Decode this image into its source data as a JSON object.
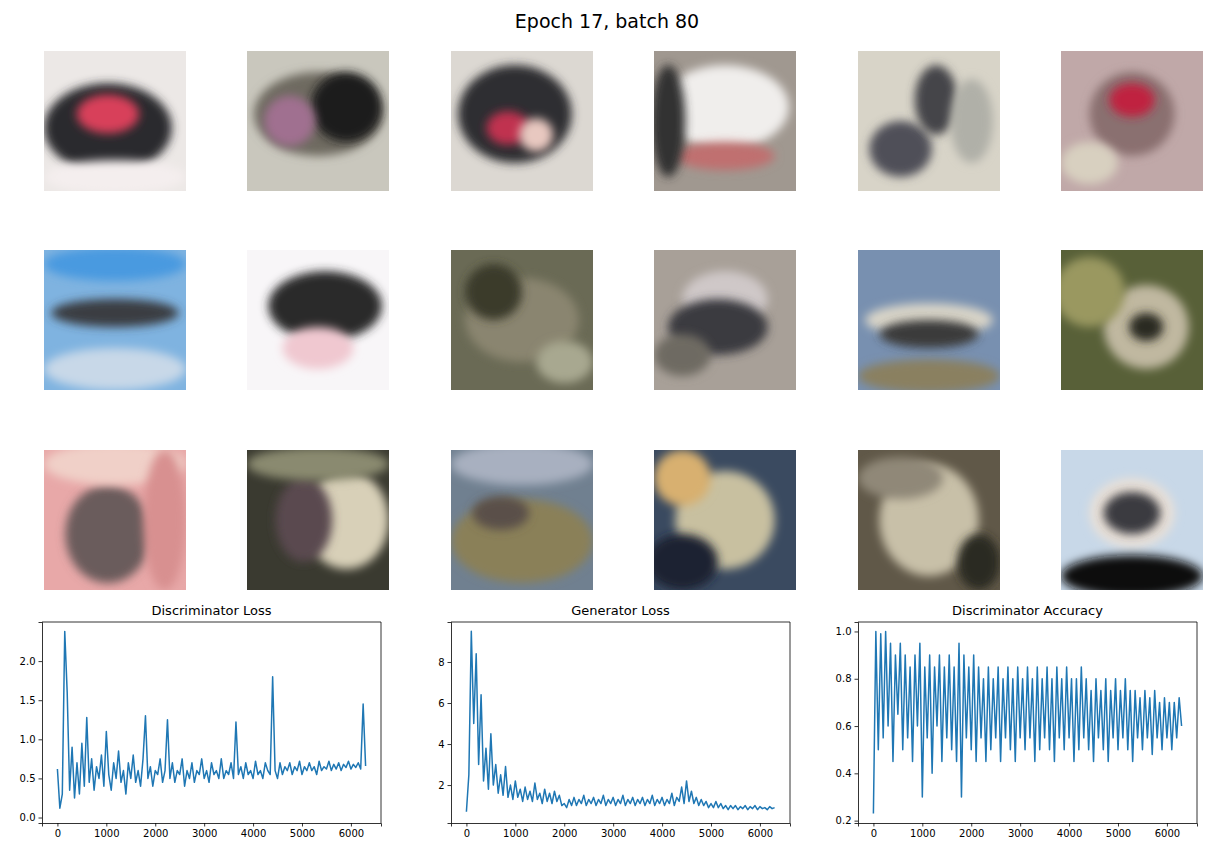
{
  "title": "Epoch 17, batch 80",
  "chart_data": [
    {
      "type": "line",
      "title": "Discriminator Loss",
      "color": "#1f77b4",
      "x": [
        0,
        50,
        100,
        150,
        200,
        250,
        300,
        350,
        400,
        450,
        500,
        550,
        600,
        650,
        700,
        750,
        800,
        850,
        900,
        950,
        1000,
        1050,
        1100,
        1150,
        1200,
        1250,
        1300,
        1350,
        1400,
        1450,
        1500,
        1550,
        1600,
        1650,
        1700,
        1750,
        1800,
        1850,
        1900,
        1950,
        2000,
        2050,
        2100,
        2150,
        2200,
        2250,
        2300,
        2350,
        2400,
        2450,
        2500,
        2550,
        2600,
        2650,
        2700,
        2750,
        2800,
        2850,
        2900,
        2950,
        3000,
        3050,
        3100,
        3150,
        3200,
        3250,
        3300,
        3350,
        3400,
        3450,
        3500,
        3550,
        3600,
        3650,
        3700,
        3750,
        3800,
        3850,
        3900,
        3950,
        4000,
        4050,
        4100,
        4150,
        4200,
        4250,
        4300,
        4350,
        4400,
        4450,
        4500,
        4550,
        4600,
        4650,
        4700,
        4750,
        4800,
        4850,
        4900,
        4950,
        5000,
        5050,
        5100,
        5150,
        5200,
        5250,
        5300,
        5350,
        5400,
        5450,
        5500,
        5550,
        5600,
        5650,
        5700,
        5750,
        5800,
        5850,
        5900,
        5950,
        6000,
        6050,
        6100,
        6150,
        6200,
        6250,
        6300
      ],
      "values": [
        0.62,
        0.12,
        0.3,
        2.38,
        1.6,
        0.35,
        0.9,
        0.25,
        0.7,
        0.3,
        0.95,
        0.4,
        1.28,
        0.45,
        0.75,
        0.35,
        0.65,
        0.5,
        0.8,
        0.4,
        1.1,
        0.55,
        0.35,
        0.7,
        0.5,
        0.85,
        0.45,
        0.6,
        0.3,
        0.7,
        0.5,
        0.8,
        0.45,
        0.6,
        0.4,
        0.75,
        1.3,
        0.5,
        0.65,
        0.4,
        0.6,
        0.55,
        0.75,
        0.45,
        0.6,
        1.25,
        0.5,
        0.7,
        0.45,
        0.6,
        0.55,
        0.75,
        0.4,
        0.6,
        0.5,
        0.7,
        0.45,
        0.6,
        0.55,
        0.75,
        0.5,
        0.6,
        0.45,
        0.7,
        0.55,
        0.6,
        0.5,
        0.75,
        0.5,
        0.6,
        0.55,
        0.7,
        0.5,
        1.22,
        0.55,
        0.65,
        0.5,
        0.7,
        0.55,
        0.6,
        0.5,
        0.72,
        0.55,
        0.6,
        0.5,
        0.7,
        0.6,
        0.55,
        1.8,
        0.6,
        0.5,
        0.7,
        0.55,
        0.65,
        0.6,
        0.7,
        0.55,
        0.65,
        0.6,
        0.72,
        0.55,
        0.65,
        0.6,
        0.7,
        0.6,
        0.65,
        0.55,
        0.72,
        0.6,
        0.65,
        0.62,
        0.72,
        0.6,
        0.68,
        0.62,
        0.7,
        0.6,
        0.68,
        0.64,
        0.72,
        0.62,
        0.68,
        0.64,
        0.7,
        0.62,
        1.45,
        0.66
      ],
      "xlim": [
        -315,
        6615
      ],
      "xticks": [
        0,
        1000,
        2000,
        3000,
        4000,
        5000,
        6000
      ],
      "ylim": [
        -0.07,
        2.5
      ],
      "yticks": [
        {
          "value": 0,
          "label": "0.0"
        },
        0.5,
        {
          "value": 1,
          "label": "1.0"
        },
        1.5,
        {
          "value": 2,
          "label": "2.0"
        }
      ]
    },
    {
      "type": "line",
      "title": "Generator Loss",
      "color": "#1f77b4",
      "x": [
        0,
        50,
        100,
        150,
        200,
        250,
        300,
        350,
        400,
        450,
        500,
        550,
        600,
        650,
        700,
        750,
        800,
        850,
        900,
        950,
        1000,
        1050,
        1100,
        1150,
        1200,
        1250,
        1300,
        1350,
        1400,
        1450,
        1500,
        1550,
        1600,
        1650,
        1700,
        1750,
        1800,
        1850,
        1900,
        1950,
        2000,
        2050,
        2100,
        2150,
        2200,
        2250,
        2300,
        2350,
        2400,
        2450,
        2500,
        2550,
        2600,
        2650,
        2700,
        2750,
        2800,
        2850,
        2900,
        2950,
        3000,
        3050,
        3100,
        3150,
        3200,
        3250,
        3300,
        3350,
        3400,
        3450,
        3500,
        3550,
        3600,
        3650,
        3700,
        3750,
        3800,
        3850,
        3900,
        3950,
        4000,
        4050,
        4100,
        4150,
        4200,
        4250,
        4300,
        4350,
        4400,
        4450,
        4500,
        4550,
        4600,
        4650,
        4700,
        4750,
        4800,
        4850,
        4900,
        4950,
        5000,
        5050,
        5100,
        5150,
        5200,
        5250,
        5300,
        5350,
        5400,
        5450,
        5500,
        5550,
        5600,
        5650,
        5700,
        5750,
        5800,
        5850,
        5900,
        5950,
        6000,
        6050,
        6100,
        6150,
        6200,
        6250,
        6300
      ],
      "values": [
        0.7,
        2.5,
        9.5,
        5.0,
        8.4,
        3.0,
        6.4,
        2.2,
        3.8,
        1.8,
        4.5,
        2.0,
        3.0,
        1.6,
        2.5,
        1.5,
        2.9,
        1.4,
        2.0,
        1.3,
        2.2,
        1.4,
        1.8,
        1.2,
        1.9,
        1.3,
        1.7,
        1.2,
        2.1,
        1.3,
        1.6,
        1.1,
        1.8,
        1.2,
        1.6,
        1.1,
        1.7,
        1.2,
        1.5,
        1.0,
        1.1,
        0.9,
        1.3,
        1.0,
        1.4,
        1.0,
        1.3,
        1.1,
        1.5,
        1.0,
        1.3,
        1.1,
        1.4,
        1.0,
        1.3,
        1.1,
        1.5,
        1.0,
        1.3,
        1.1,
        1.4,
        1.0,
        1.3,
        1.1,
        1.5,
        1.0,
        1.3,
        1.1,
        1.4,
        1.0,
        1.3,
        1.1,
        1.4,
        1.0,
        1.3,
        1.1,
        1.5,
        1.0,
        1.3,
        1.1,
        1.4,
        1.0,
        1.3,
        1.1,
        1.6,
        1.0,
        1.4,
        1.2,
        1.9,
        1.1,
        2.2,
        1.2,
        1.7,
        1.1,
        1.4,
        1.0,
        1.3,
        1.0,
        1.2,
        0.9,
        1.1,
        0.9,
        1.2,
        0.9,
        1.1,
        0.85,
        1.0,
        0.8,
        1.0,
        0.85,
        1.0,
        0.8,
        0.95,
        0.85,
        1.0,
        0.8,
        0.95,
        0.85,
        1.0,
        0.8,
        0.95,
        0.85,
        0.9,
        0.8,
        0.95,
        0.85,
        0.9
      ],
      "xlim": [
        -315,
        6615
      ],
      "xticks": [
        0,
        1000,
        2000,
        3000,
        4000,
        5000,
        6000
      ],
      "ylim": [
        0.15,
        9.95
      ],
      "yticks": [
        2,
        4,
        6,
        8
      ]
    },
    {
      "type": "line",
      "title": "Discriminator Accuracy",
      "color": "#1f77b4",
      "x": [
        0,
        50,
        100,
        150,
        200,
        250,
        300,
        350,
        400,
        450,
        500,
        550,
        600,
        650,
        700,
        750,
        800,
        850,
        900,
        950,
        1000,
        1050,
        1100,
        1150,
        1200,
        1250,
        1300,
        1350,
        1400,
        1450,
        1500,
        1550,
        1600,
        1650,
        1700,
        1750,
        1800,
        1850,
        1900,
        1950,
        2000,
        2050,
        2100,
        2150,
        2200,
        2250,
        2300,
        2350,
        2400,
        2450,
        2500,
        2550,
        2600,
        2650,
        2700,
        2750,
        2800,
        2850,
        2900,
        2950,
        3000,
        3050,
        3100,
        3150,
        3200,
        3250,
        3300,
        3350,
        3400,
        3450,
        3500,
        3550,
        3600,
        3650,
        3700,
        3750,
        3800,
        3850,
        3900,
        3950,
        4000,
        4050,
        4100,
        4150,
        4200,
        4250,
        4300,
        4350,
        4400,
        4450,
        4500,
        4550,
        4600,
        4650,
        4700,
        4750,
        4800,
        4850,
        4900,
        4950,
        5000,
        5050,
        5100,
        5150,
        5200,
        5250,
        5300,
        5350,
        5400,
        5450,
        5500,
        5550,
        5600,
        5650,
        5700,
        5750,
        5800,
        5850,
        5900,
        5950,
        6000,
        6050,
        6100,
        6150,
        6200,
        6250,
        6300
      ],
      "values": [
        0.23,
        1.0,
        0.5,
        0.99,
        0.55,
        1.0,
        0.6,
        0.95,
        0.45,
        0.9,
        0.65,
        0.95,
        0.5,
        0.9,
        0.55,
        0.85,
        0.45,
        0.9,
        0.6,
        0.95,
        0.3,
        0.85,
        0.55,
        0.9,
        0.4,
        0.85,
        0.6,
        0.9,
        0.45,
        0.85,
        0.55,
        0.9,
        0.5,
        0.85,
        0.45,
        0.95,
        0.3,
        0.9,
        0.55,
        0.85,
        0.5,
        0.9,
        0.45,
        0.85,
        0.55,
        0.8,
        0.45,
        0.85,
        0.5,
        0.8,
        0.55,
        0.85,
        0.45,
        0.8,
        0.55,
        0.85,
        0.5,
        0.8,
        0.45,
        0.85,
        0.55,
        0.8,
        0.5,
        0.85,
        0.55,
        0.8,
        0.45,
        0.85,
        0.5,
        0.8,
        0.55,
        0.85,
        0.5,
        0.8,
        0.45,
        0.85,
        0.55,
        0.8,
        0.5,
        0.85,
        0.55,
        0.8,
        0.45,
        0.8,
        0.5,
        0.85,
        0.55,
        0.8,
        0.5,
        0.75,
        0.45,
        0.8,
        0.55,
        0.75,
        0.5,
        0.8,
        0.45,
        0.75,
        0.55,
        0.8,
        0.5,
        0.75,
        0.55,
        0.8,
        0.5,
        0.75,
        0.45,
        0.75,
        0.55,
        0.72,
        0.5,
        0.75,
        0.55,
        0.72,
        0.48,
        0.75,
        0.55,
        0.7,
        0.5,
        0.72,
        0.55,
        0.7,
        0.5,
        0.7,
        0.55,
        0.72,
        0.6
      ],
      "xlim": [
        -315,
        6615
      ],
      "xticks": [
        0,
        1000,
        2000,
        3000,
        4000,
        5000,
        6000
      ],
      "ylim": [
        0.19,
        1.04
      ],
      "yticks": [
        0.2,
        0.4,
        0.6,
        0.8,
        {
          "value": 1,
          "label": "1.0"
        }
      ]
    }
  ]
}
